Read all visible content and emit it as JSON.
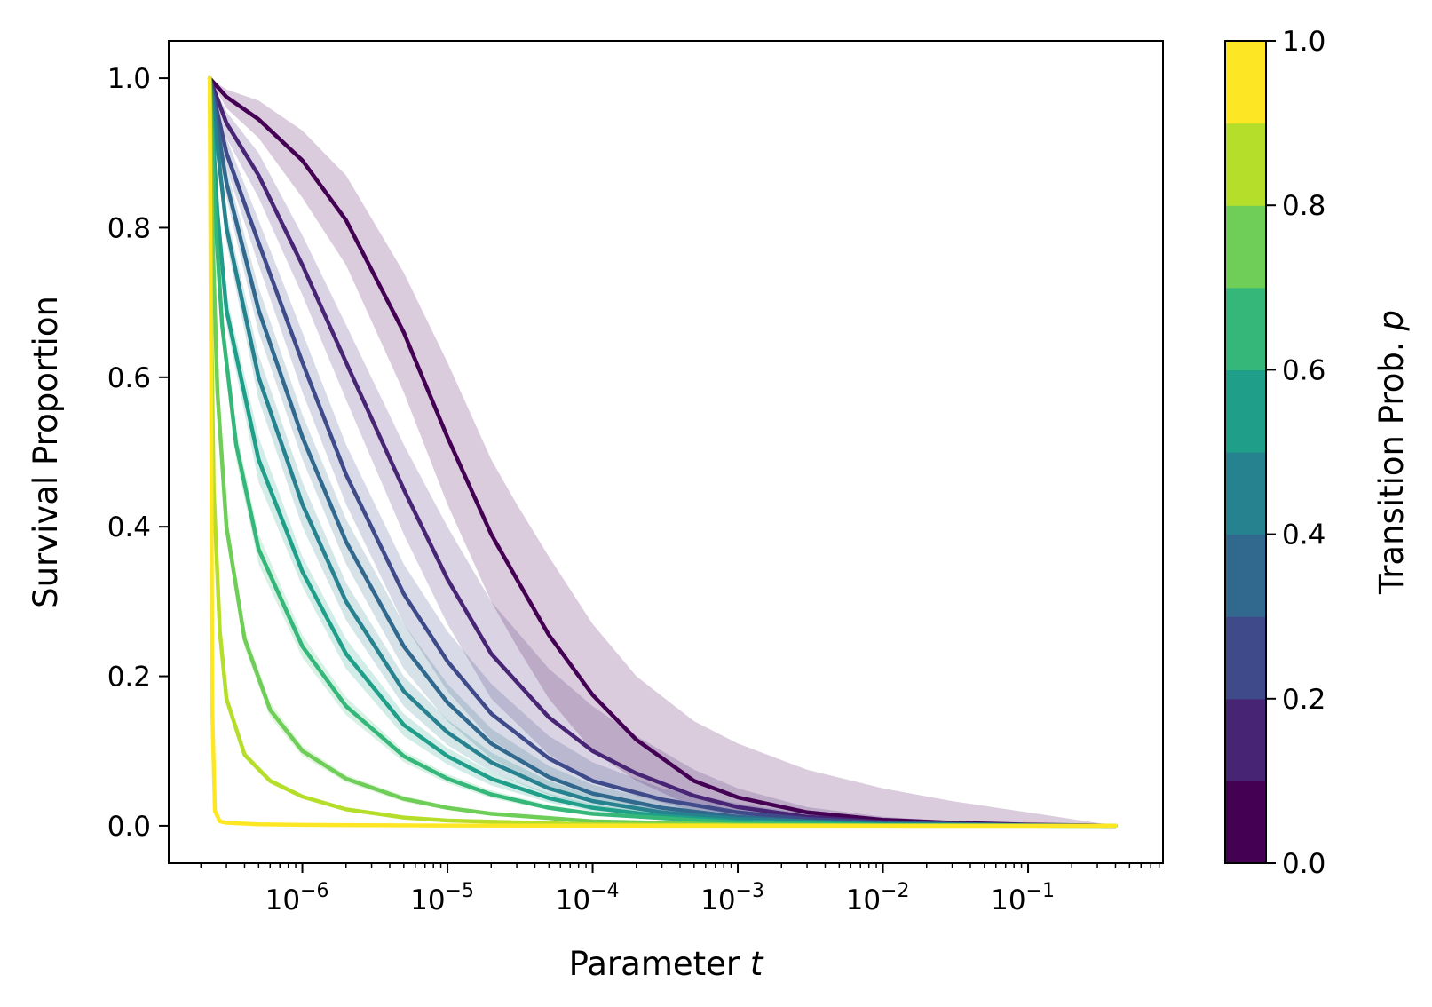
{
  "chart_data": {
    "type": "line",
    "xlabel": "Parameter",
    "xlabel_var": "t",
    "ylabel": "Survival Proportion",
    "xscale": "log",
    "xlim": [
      1.2e-07,
      0.85
    ],
    "ylim": [
      -0.05,
      1.05
    ],
    "x_ticks": [
      {
        "value": 1e-06,
        "base": "10",
        "exp": "−6"
      },
      {
        "value": 1e-05,
        "base": "10",
        "exp": "−5"
      },
      {
        "value": 0.0001,
        "base": "10",
        "exp": "−4"
      },
      {
        "value": 0.001,
        "base": "10",
        "exp": "−3"
      },
      {
        "value": 0.01,
        "base": "10",
        "exp": "−2"
      },
      {
        "value": 0.1,
        "base": "10",
        "exp": "−1"
      }
    ],
    "y_ticks": [
      "0.0",
      "0.2",
      "0.4",
      "0.6",
      "0.8",
      "1.0"
    ],
    "y_tick_values": [
      0,
      0.2,
      0.4,
      0.6,
      0.8,
      1.0
    ],
    "grid": false,
    "x_start": 2.3e-07,
    "x_end": 0.4,
    "series": [
      {
        "p": 0.05,
        "color": "#440154",
        "band_alpha": 0.2,
        "x": [
          2.3e-07,
          3e-07,
          5e-07,
          1e-06,
          2e-06,
          5e-06,
          1e-05,
          2e-05,
          3e-05,
          5e-05,
          0.0001,
          0.0002,
          0.0005,
          0.001,
          0.003,
          0.01,
          0.03,
          0.1,
          0.4
        ],
        "y": [
          1.0,
          0.975,
          0.945,
          0.89,
          0.81,
          0.66,
          0.52,
          0.39,
          0.33,
          0.255,
          0.175,
          0.115,
          0.06,
          0.038,
          0.018,
          0.008,
          0.004,
          0.0015,
          0.0
        ],
        "y_lower": [
          1.0,
          0.96,
          0.92,
          0.84,
          0.75,
          0.58,
          0.43,
          0.3,
          0.24,
          0.17,
          0.1,
          0.06,
          0.025,
          0.013,
          0.005,
          0.002,
          0.001,
          0.0005,
          0.0
        ],
        "y_upper": [
          1.0,
          0.985,
          0.97,
          0.93,
          0.87,
          0.74,
          0.62,
          0.49,
          0.43,
          0.36,
          0.27,
          0.2,
          0.14,
          0.11,
          0.075,
          0.05,
          0.033,
          0.018,
          0.0
        ]
      },
      {
        "p": 0.15,
        "color": "#482475",
        "band_alpha": 0.2,
        "x": [
          2.3e-07,
          3e-07,
          5e-07,
          1e-06,
          2e-06,
          5e-06,
          1e-05,
          2e-05,
          5e-05,
          0.0001,
          0.0002,
          0.0005,
          0.001,
          0.003,
          0.01,
          0.03,
          0.1,
          0.4
        ],
        "y": [
          1.0,
          0.94,
          0.87,
          0.75,
          0.62,
          0.45,
          0.33,
          0.23,
          0.145,
          0.1,
          0.07,
          0.04,
          0.025,
          0.012,
          0.005,
          0.0025,
          0.001,
          0.0
        ],
        "y_lower": [
          1.0,
          0.92,
          0.84,
          0.71,
          0.57,
          0.39,
          0.27,
          0.17,
          0.095,
          0.06,
          0.04,
          0.02,
          0.01,
          0.004,
          0.0015,
          0.0008,
          0.0003,
          0.0
        ],
        "y_upper": [
          1.0,
          0.955,
          0.9,
          0.79,
          0.67,
          0.51,
          0.4,
          0.3,
          0.21,
          0.16,
          0.12,
          0.075,
          0.05,
          0.025,
          0.012,
          0.006,
          0.003,
          0.0
        ]
      },
      {
        "p": 0.25,
        "color": "#3e4a89",
        "band_alpha": 0.2,
        "x": [
          2.3e-07,
          3e-07,
          5e-07,
          1e-06,
          2e-06,
          5e-06,
          1e-05,
          2e-05,
          5e-05,
          0.0001,
          0.0003,
          0.001,
          0.003,
          0.01,
          0.1,
          0.4
        ],
        "y": [
          1.0,
          0.9,
          0.78,
          0.62,
          0.47,
          0.31,
          0.22,
          0.15,
          0.09,
          0.06,
          0.035,
          0.018,
          0.009,
          0.004,
          0.001,
          0.0
        ],
        "y_lower": [
          1.0,
          0.88,
          0.75,
          0.58,
          0.43,
          0.27,
          0.18,
          0.115,
          0.065,
          0.04,
          0.02,
          0.009,
          0.004,
          0.0015,
          0.0003,
          0.0
        ],
        "y_upper": [
          1.0,
          0.92,
          0.81,
          0.66,
          0.51,
          0.35,
          0.26,
          0.19,
          0.12,
          0.085,
          0.05,
          0.03,
          0.016,
          0.008,
          0.002,
          0.0
        ]
      },
      {
        "p": 0.35,
        "color": "#31688e",
        "band_alpha": 0.2,
        "x": [
          2.3e-07,
          3e-07,
          5e-07,
          1e-06,
          2e-06,
          5e-06,
          1e-05,
          2e-05,
          5e-05,
          0.0001,
          0.0003,
          0.001,
          0.003,
          0.01,
          0.1,
          0.4
        ],
        "y": [
          1.0,
          0.86,
          0.69,
          0.52,
          0.38,
          0.24,
          0.165,
          0.11,
          0.065,
          0.043,
          0.024,
          0.012,
          0.006,
          0.003,
          0.0008,
          0.0
        ],
        "y_lower": [
          1.0,
          0.84,
          0.66,
          0.49,
          0.35,
          0.21,
          0.14,
          0.09,
          0.05,
          0.032,
          0.016,
          0.007,
          0.003,
          0.0012,
          0.0002,
          0.0
        ],
        "y_upper": [
          1.0,
          0.88,
          0.72,
          0.55,
          0.41,
          0.27,
          0.19,
          0.13,
          0.08,
          0.055,
          0.032,
          0.017,
          0.009,
          0.005,
          0.0015,
          0.0
        ]
      },
      {
        "p": 0.45,
        "color": "#26828e",
        "band_alpha": 0.2,
        "x": [
          2.3e-07,
          3e-07,
          5e-07,
          1e-06,
          2e-06,
          5e-06,
          1e-05,
          2e-05,
          5e-05,
          0.0001,
          0.0003,
          0.001,
          0.01,
          0.1,
          0.4
        ],
        "y": [
          1.0,
          0.8,
          0.6,
          0.43,
          0.3,
          0.18,
          0.125,
          0.085,
          0.05,
          0.033,
          0.018,
          0.009,
          0.002,
          0.0005,
          0.0
        ],
        "y_lower": [
          1.0,
          0.78,
          0.57,
          0.4,
          0.275,
          0.16,
          0.108,
          0.072,
          0.041,
          0.026,
          0.013,
          0.006,
          0.001,
          0.0002,
          0.0
        ],
        "y_upper": [
          1.0,
          0.82,
          0.63,
          0.46,
          0.325,
          0.2,
          0.142,
          0.098,
          0.06,
          0.04,
          0.023,
          0.012,
          0.003,
          0.001,
          0.0
        ]
      },
      {
        "p": 0.55,
        "color": "#1f9e89",
        "band_alpha": 0.2,
        "x": [
          2.3e-07,
          2.6e-07,
          3e-07,
          5e-07,
          1e-06,
          2e-06,
          5e-06,
          1e-05,
          2e-05,
          5e-05,
          0.0001,
          0.0003,
          0.001,
          0.01,
          0.1,
          0.4
        ],
        "y": [
          1.0,
          0.82,
          0.69,
          0.49,
          0.34,
          0.23,
          0.135,
          0.093,
          0.063,
          0.037,
          0.024,
          0.013,
          0.006,
          0.0015,
          0.0003,
          0.0
        ],
        "y_lower": [
          1.0,
          0.8,
          0.67,
          0.46,
          0.32,
          0.21,
          0.12,
          0.082,
          0.054,
          0.031,
          0.019,
          0.01,
          0.0045,
          0.001,
          0.0002,
          0.0
        ],
        "y_upper": [
          1.0,
          0.84,
          0.71,
          0.52,
          0.36,
          0.25,
          0.15,
          0.104,
          0.072,
          0.043,
          0.029,
          0.016,
          0.0075,
          0.002,
          0.0005,
          0.0
        ]
      },
      {
        "p": 0.65,
        "color": "#35b779",
        "band_alpha": 0.2,
        "x": [
          2.3e-07,
          2.5e-07,
          2.8e-07,
          3.5e-07,
          5e-07,
          1e-06,
          2e-06,
          5e-06,
          1e-05,
          2e-05,
          5e-05,
          0.0001,
          0.001,
          0.01,
          0.1,
          0.4
        ],
        "y": [
          1.0,
          0.82,
          0.67,
          0.51,
          0.37,
          0.24,
          0.16,
          0.093,
          0.063,
          0.042,
          0.024,
          0.016,
          0.004,
          0.001,
          0.0002,
          0.0
        ],
        "y_lower": [
          1.0,
          0.8,
          0.65,
          0.49,
          0.35,
          0.225,
          0.148,
          0.085,
          0.057,
          0.037,
          0.021,
          0.013,
          0.003,
          0.0007,
          0.0001,
          0.0
        ],
        "y_upper": [
          1.0,
          0.84,
          0.69,
          0.53,
          0.39,
          0.255,
          0.172,
          0.1,
          0.069,
          0.047,
          0.028,
          0.019,
          0.005,
          0.0014,
          0.0003,
          0.0
        ]
      },
      {
        "p": 0.75,
        "color": "#6ece58",
        "band_alpha": 0.2,
        "x": [
          2.3e-07,
          2.4e-07,
          2.6e-07,
          3e-07,
          4e-07,
          6e-07,
          1e-06,
          2e-06,
          5e-06,
          1e-05,
          2e-05,
          0.0001,
          0.001,
          0.01,
          0.1,
          0.4
        ],
        "y": [
          1.0,
          0.8,
          0.58,
          0.4,
          0.25,
          0.155,
          0.1,
          0.063,
          0.036,
          0.024,
          0.016,
          0.006,
          0.0015,
          0.0004,
          0.0001,
          0.0
        ],
        "y_lower": [
          1.0,
          0.78,
          0.56,
          0.385,
          0.238,
          0.145,
          0.093,
          0.058,
          0.032,
          0.021,
          0.014,
          0.005,
          0.0012,
          0.0003,
          0.0001,
          0.0
        ],
        "y_upper": [
          1.0,
          0.82,
          0.6,
          0.415,
          0.262,
          0.165,
          0.107,
          0.068,
          0.04,
          0.027,
          0.018,
          0.007,
          0.0018,
          0.0005,
          0.0001,
          0.0
        ]
      },
      {
        "p": 0.85,
        "color": "#b5de2b",
        "band_alpha": 0.2,
        "x": [
          2.3e-07,
          2.35e-07,
          2.45e-07,
          2.7e-07,
          3e-07,
          4e-07,
          6e-07,
          1e-06,
          2e-06,
          5e-06,
          1e-05,
          0.0001,
          0.001,
          0.01,
          0.1,
          0.4
        ],
        "y": [
          1.0,
          0.7,
          0.45,
          0.26,
          0.17,
          0.095,
          0.06,
          0.039,
          0.022,
          0.011,
          0.007,
          0.0018,
          0.0005,
          0.0001,
          0.0,
          0.0
        ],
        "y_lower": [
          1.0,
          0.69,
          0.44,
          0.25,
          0.163,
          0.09,
          0.056,
          0.036,
          0.02,
          0.0098,
          0.0062,
          0.0015,
          0.0004,
          0.0001,
          0.0,
          0.0
        ],
        "y_upper": [
          1.0,
          0.71,
          0.46,
          0.27,
          0.177,
          0.1,
          0.064,
          0.042,
          0.024,
          0.0122,
          0.0078,
          0.0021,
          0.0006,
          0.0001,
          0.0,
          0.0
        ]
      },
      {
        "p": 0.95,
        "color": "#fde725",
        "band_alpha": 0.2,
        "x": [
          2.3e-07,
          2.35e-07,
          2.4e-07,
          2.5e-07,
          2.7e-07,
          3e-07,
          5e-07,
          1e-06,
          1e-05,
          0.0001,
          0.001,
          0.01,
          0.1,
          0.4
        ],
        "y": [
          1.0,
          0.6,
          0.15,
          0.02,
          0.006,
          0.004,
          0.002,
          0.0012,
          0.0004,
          0.0001,
          0.0,
          0.0,
          0.0,
          0.0
        ],
        "y_lower": [
          1.0,
          0.6,
          0.15,
          0.02,
          0.006,
          0.004,
          0.002,
          0.0012,
          0.0004,
          0.0001,
          0.0,
          0.0,
          0.0,
          0.0
        ],
        "y_upper": [
          1.0,
          0.6,
          0.15,
          0.02,
          0.006,
          0.004,
          0.002,
          0.0012,
          0.0004,
          0.0001,
          0.0,
          0.0,
          0.0,
          0.0
        ]
      }
    ],
    "colorbar": {
      "label": "Transition Prob.",
      "label_var": "p",
      "range": [
        0,
        1
      ],
      "ticks": [
        "0.0",
        "0.2",
        "0.4",
        "0.6",
        "0.8",
        "1.0"
      ],
      "tick_values": [
        0,
        0.2,
        0.4,
        0.6,
        0.8,
        1.0
      ],
      "colors": [
        "#440154",
        "#482475",
        "#3e4a89",
        "#31688e",
        "#26828e",
        "#1f9e89",
        "#35b779",
        "#6ece58",
        "#b5de2b",
        "#fde725"
      ]
    }
  }
}
